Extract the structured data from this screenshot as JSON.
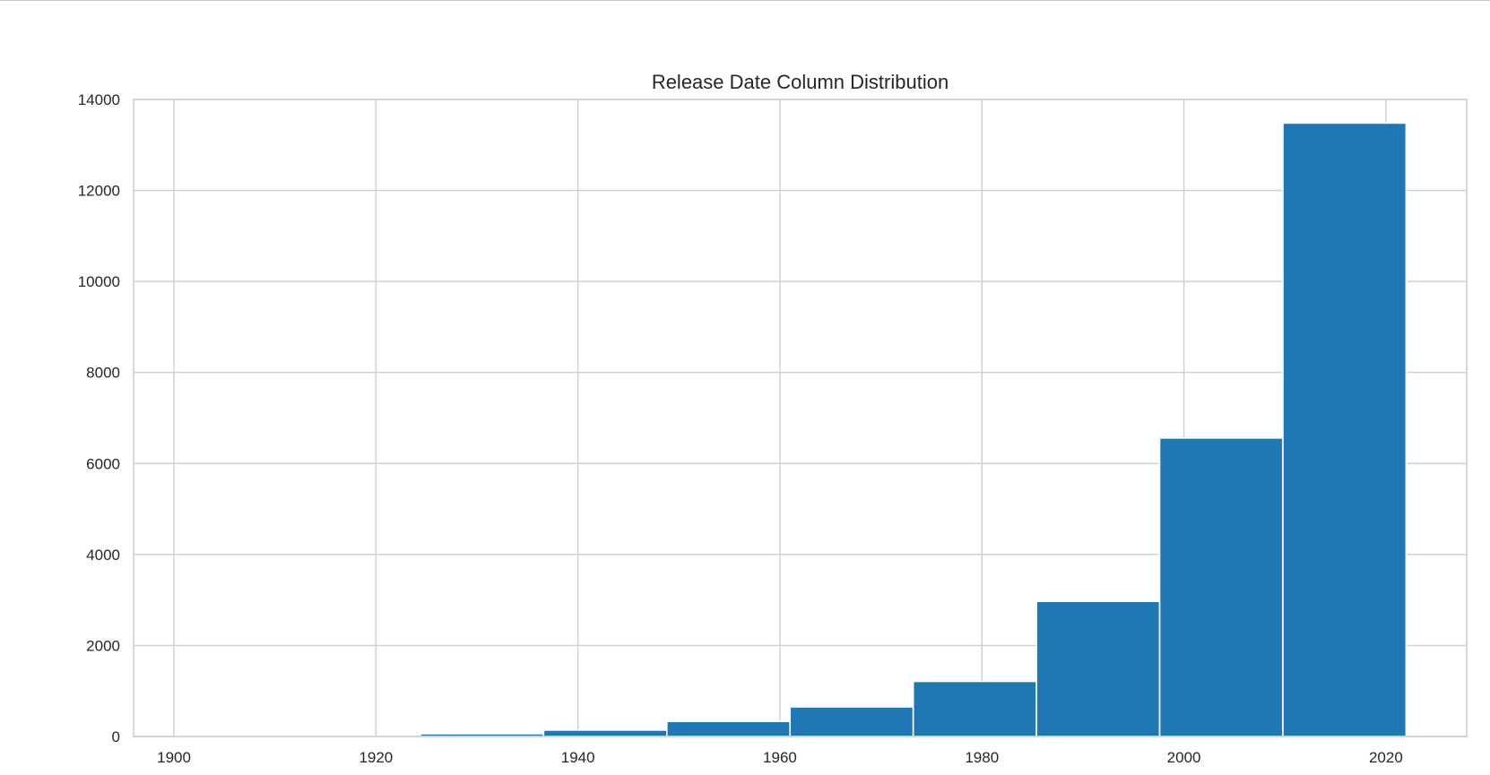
{
  "chart_data": {
    "type": "bar",
    "title": "Release Date Column Distribution",
    "xlabel": "",
    "ylabel": "",
    "bin_edges": [
      1900,
      1912.2,
      1924.4,
      1936.6,
      1948.8,
      1961.0,
      1973.2,
      1985.4,
      1997.6,
      2009.8,
      2022.0
    ],
    "values": [
      2,
      5,
      60,
      140,
      330,
      650,
      1210,
      2970,
      6560,
      13480
    ],
    "xlim": [
      1896,
      2028
    ],
    "ylim": [
      0,
      14000
    ],
    "xticks": [
      "1900",
      "1920",
      "1940",
      "1960",
      "1980",
      "2000",
      "2020"
    ],
    "yticks": [
      "0",
      "2000",
      "4000",
      "6000",
      "8000",
      "10000",
      "12000",
      "14000"
    ],
    "grid": true,
    "colors": {
      "bar": "#1f77b4",
      "grid": "#cfcfcf",
      "background": "#ffffff"
    }
  }
}
